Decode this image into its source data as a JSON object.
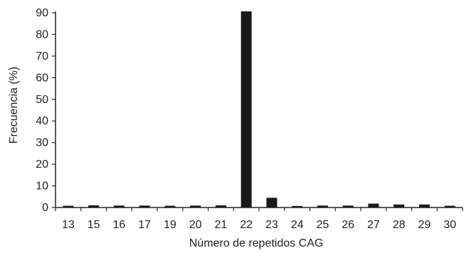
{
  "chart_data": {
    "type": "bar",
    "title": "",
    "xlabel": "Número de repetidos CAG",
    "ylabel": "Frecuencia (%)",
    "categories": [
      "13",
      "15",
      "16",
      "17",
      "19",
      "20",
      "21",
      "22",
      "23",
      "24",
      "25",
      "26",
      "27",
      "28",
      "29",
      "30"
    ],
    "values": [
      0.8,
      1.0,
      0.9,
      0.9,
      0.8,
      0.9,
      1.0,
      91.0,
      4.5,
      0.7,
      0.9,
      0.9,
      1.8,
      1.4,
      1.4,
      0.8
    ],
    "ylim": [
      0,
      90
    ],
    "yticks": [
      0,
      10,
      20,
      30,
      40,
      50,
      60,
      70,
      80,
      90
    ],
    "grid": false,
    "legend": "none",
    "bar_color": "#1a1a1a",
    "axis_color": "#222222"
  }
}
